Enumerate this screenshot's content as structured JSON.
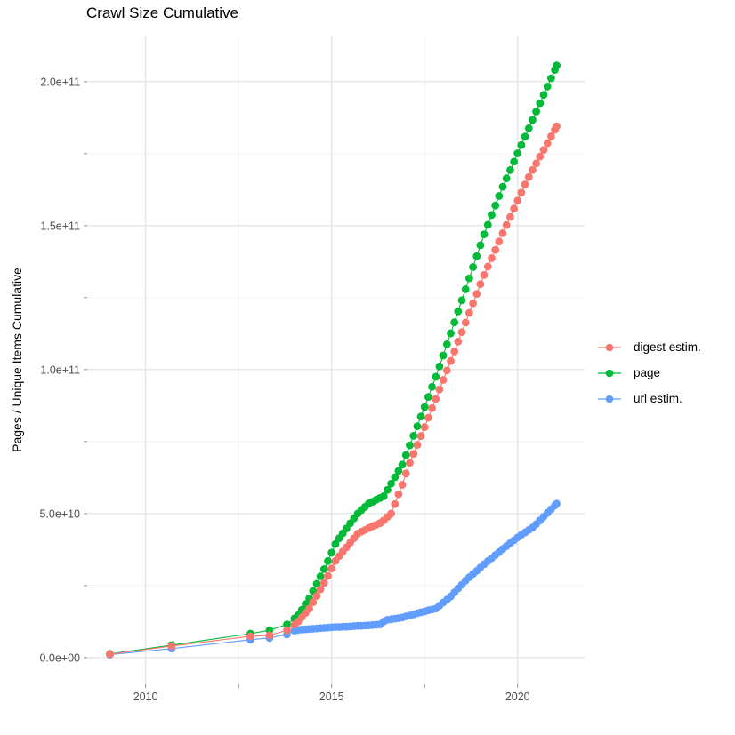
{
  "title": "Crawl Size Cumulative",
  "y_axis_title": "Pages / Unique Items Cumulative",
  "colors": {
    "digest": "#F8766D",
    "page": "#00BA38",
    "url": "#619CFF",
    "grid_major": "#E5E5E5",
    "grid_minor": "#F2F2F2",
    "tick_mark": "#8C8C8C",
    "tick_label": "#4D4D4D"
  },
  "legend": {
    "items": [
      {
        "key": "digest",
        "label": "digest estim.",
        "color": "#F8766D"
      },
      {
        "key": "page",
        "label": "page",
        "color": "#00BA38"
      },
      {
        "key": "url",
        "label": "url estim.",
        "color": "#619CFF"
      }
    ]
  },
  "chart_data": {
    "type": "line",
    "title": "Crawl Size Cumulative",
    "xlabel": "",
    "ylabel": "Pages / Unique Items Cumulative",
    "x_unit": "decimal year",
    "y_unit": "pages / unique items (billions, 1e9)",
    "grid": true,
    "legend_position": "right",
    "xlim": [
      2008.43,
      2021.8
    ],
    "ylim_e9": [
      -9.3,
      216
    ],
    "x_ticks": [
      {
        "value": 2010,
        "label": "2010"
      },
      {
        "value": 2015,
        "label": "2015"
      },
      {
        "value": 2020,
        "label": "2020"
      }
    ],
    "x_minor": [
      2012.5,
      2017.5
    ],
    "y_ticks": [
      {
        "value_e9": 0,
        "label": "0.0e+00"
      },
      {
        "value_e9": 50,
        "label": "5.0e+10"
      },
      {
        "value_e9": 100,
        "label": "1.0e+11"
      },
      {
        "value_e9": 150,
        "label": "1.5e+11"
      },
      {
        "value_e9": 200,
        "label": "2.0e+11"
      }
    ],
    "y_minor_e9": [
      25,
      75,
      125,
      175
    ],
    "x": [
      2009.04,
      2010.7,
      2012.82,
      2013.33,
      2013.8,
      2014.0,
      2014.1,
      2014.2,
      2014.3,
      2014.4,
      2014.5,
      2014.6,
      2014.7,
      2014.8,
      2014.9,
      2015.0,
      2015.1,
      2015.2,
      2015.3,
      2015.4,
      2015.5,
      2015.6,
      2015.7,
      2015.8,
      2015.9,
      2016.0,
      2016.1,
      2016.2,
      2016.3,
      2016.4,
      2016.5,
      2016.6,
      2016.7,
      2016.8,
      2016.9,
      2017.0,
      2017.1,
      2017.2,
      2017.3,
      2017.4,
      2017.5,
      2017.6,
      2017.7,
      2017.8,
      2017.9,
      2018.0,
      2018.1,
      2018.2,
      2018.3,
      2018.4,
      2018.5,
      2018.6,
      2018.7,
      2018.8,
      2018.9,
      2019.0,
      2019.1,
      2019.2,
      2019.3,
      2019.4,
      2019.5,
      2019.6,
      2019.7,
      2019.8,
      2019.9,
      2020.0,
      2020.1,
      2020.2,
      2020.3,
      2020.4,
      2020.5,
      2020.6,
      2020.7,
      2020.8,
      2020.9,
      2021.0,
      2021.05
    ],
    "series": [
      {
        "name": "url estim.",
        "key": "url",
        "color": "#619CFF",
        "values_e9": [
          1.0,
          3.1,
          6.2,
          6.8,
          8.0,
          9.3,
          9.6,
          9.7,
          9.8,
          9.9,
          10.0,
          10.1,
          10.2,
          10.3,
          10.4,
          10.5,
          10.6,
          10.6,
          10.7,
          10.7,
          10.8,
          10.9,
          11.0,
          11.0,
          11.1,
          11.2,
          11.3,
          11.4,
          11.5,
          12.5,
          13.1,
          13.3,
          13.5,
          13.7,
          13.9,
          14.3,
          14.6,
          15.0,
          15.4,
          15.7,
          16.0,
          16.4,
          16.7,
          17.0,
          18.0,
          19.1,
          20.1,
          21.2,
          22.6,
          24.0,
          25.3,
          26.7,
          27.9,
          29.0,
          30.1,
          31.3,
          32.4,
          33.5,
          34.5,
          35.6,
          36.6,
          37.7,
          38.7,
          39.7,
          40.7,
          41.7,
          42.6,
          43.4,
          44.3,
          45.1,
          46.3,
          47.6,
          48.9,
          50.2,
          51.5,
          52.8,
          53.4
        ]
      },
      {
        "name": "page",
        "key": "page",
        "color": "#00BA38",
        "values_e9": [
          1.3,
          4.3,
          8.3,
          9.5,
          11.5,
          13.6,
          14.7,
          16.6,
          18.6,
          20.5,
          23.1,
          25.6,
          28.2,
          30.7,
          33.5,
          36.4,
          39.4,
          41.4,
          43.1,
          44.8,
          46.6,
          48.3,
          50.0,
          51.2,
          52.3,
          53.5,
          54.1,
          54.8,
          55.4,
          56.0,
          58.2,
          60.4,
          62.6,
          64.8,
          67.0,
          70.3,
          73.7,
          77.0,
          80.3,
          83.7,
          87.0,
          90.5,
          94.0,
          97.5,
          101.1,
          104.9,
          108.8,
          112.6,
          116.4,
          120.2,
          124.1,
          127.9,
          131.7,
          135.6,
          139.4,
          143.2,
          147.0,
          150.3,
          153.7,
          157.0,
          160.3,
          163.5,
          166.4,
          169.3,
          172.2,
          175.1,
          178.0,
          180.9,
          183.8,
          186.7,
          189.6,
          192.5,
          195.4,
          198.3,
          201.2,
          204.1,
          205.6
        ]
      },
      {
        "name": "digest estim.",
        "key": "digest",
        "color": "#F8766D",
        "values_e9": [
          1.2,
          4.0,
          7.4,
          7.7,
          9.5,
          11.4,
          12.5,
          14.0,
          15.5,
          17.0,
          19.2,
          21.4,
          23.7,
          25.9,
          28.3,
          30.9,
          33.5,
          35.2,
          36.8,
          38.3,
          39.9,
          41.4,
          43.0,
          43.7,
          44.3,
          45.0,
          45.6,
          46.1,
          46.7,
          47.6,
          48.8,
          50.0,
          53.3,
          56.7,
          60.0,
          63.9,
          67.6,
          70.7,
          73.8,
          76.9,
          80.0,
          83.3,
          86.6,
          89.8,
          93.1,
          96.4,
          99.7,
          103.0,
          106.3,
          109.7,
          113.0,
          116.3,
          119.7,
          123.0,
          126.3,
          129.7,
          132.9,
          135.8,
          138.7,
          141.6,
          144.5,
          147.4,
          150.2,
          153.0,
          155.9,
          158.7,
          161.5,
          164.3,
          166.9,
          169.3,
          171.6,
          174.0,
          176.3,
          178.6,
          181.0,
          183.3,
          184.5
        ]
      }
    ]
  }
}
